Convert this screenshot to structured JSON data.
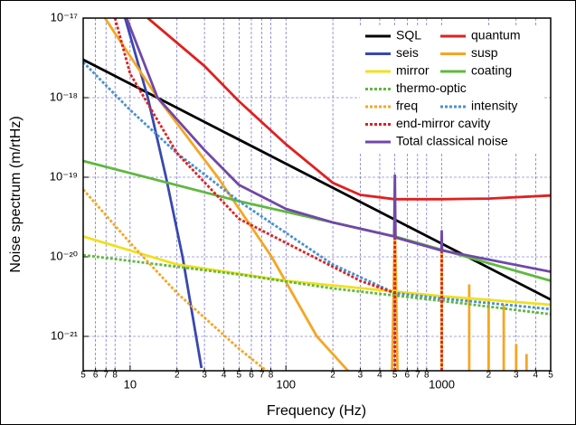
{
  "chart_data": {
    "type": "line",
    "x_label": "Frequency (Hz)",
    "y_label": "Noise spectrum (m/rtHz)",
    "xscale": "log",
    "yscale": "log",
    "grid": true,
    "legend": "upper right",
    "xlim": [
      5,
      5000
    ],
    "ylim": [
      3.7e-22,
      1e-17
    ],
    "xticks": [
      5,
      6,
      7,
      8,
      10,
      {
        "value": 20,
        "label": "2"
      },
      {
        "value": 30,
        "label": "3"
      },
      {
        "value": 40,
        "label": "4"
      },
      {
        "value": 50,
        "label": "5"
      },
      {
        "value": 60,
        "label": "6"
      },
      {
        "value": 70,
        "label": "7"
      },
      {
        "value": 80,
        "label": "8"
      },
      100,
      {
        "value": 200,
        "label": "2"
      },
      {
        "value": 300,
        "label": "3"
      },
      {
        "value": 400,
        "label": "4"
      },
      {
        "value": 500,
        "label": "5"
      },
      {
        "value": 600,
        "label": "6"
      },
      {
        "value": 700,
        "label": "7"
      },
      {
        "value": 800,
        "label": "8"
      },
      1000,
      {
        "value": 2000,
        "label": "2"
      },
      {
        "value": 3000,
        "label": "3"
      },
      {
        "value": 4000,
        "label": "4"
      },
      {
        "value": 5000,
        "label": "5"
      }
    ],
    "yticks": [
      {
        "value": 1e-21,
        "label": "10⁻²¹"
      },
      {
        "value": 1e-20,
        "label": "10⁻²⁰"
      },
      {
        "value": 1e-19,
        "label": "10⁻¹⁹"
      },
      {
        "value": 1e-18,
        "label": "10⁻¹⁸"
      },
      {
        "value": 1e-17,
        "label": "10⁻¹⁷"
      }
    ],
    "series": [
      {
        "name": "SQL",
        "color": "#000000",
        "style": "solid",
        "x": [
          5,
          5000
        ],
        "values": [
          3e-18,
          2.9e-21
        ]
      },
      {
        "name": "quantum",
        "color": "#e02020",
        "style": "solid",
        "x": [
          13,
          30,
          50,
          100,
          200,
          300,
          500,
          1000,
          2000,
          5000
        ],
        "values": [
          1e-17,
          2.5e-18,
          9e-19,
          2.6e-19,
          8.5e-20,
          6e-20,
          5.3e-20,
          5.3e-20,
          5.4e-20,
          5.9e-20
        ]
      },
      {
        "name": "seis",
        "color": "#3848b0",
        "style": "solid",
        "x": [
          9.3,
          13,
          17,
          21.7,
          28.7
        ],
        "values": [
          1e-17,
          1e-18,
          1e-19,
          1e-20,
          4e-22
        ]
      },
      {
        "name": "susp",
        "color": "#f5a623",
        "style": "solid",
        "x": [
          6.9,
          15,
          36.5,
          81,
          158,
          250,
          null,
          480,
          500,
          520,
          null,
          1000,
          1000,
          null,
          1500,
          1500,
          null,
          2000,
          2000,
          null,
          2500,
          2500,
          null,
          3000,
          3000,
          null,
          3500,
          3500
        ],
        "values": [
          1e-17,
          1e-18,
          1e-19,
          1e-20,
          1e-21,
          3.7e-22,
          null,
          3.7e-22,
          2.5e-20,
          3.7e-22,
          null,
          3.7e-22,
          1.6e-20,
          null,
          3.7e-22,
          4.5e-21,
          null,
          3.7e-22,
          3e-21,
          null,
          3.7e-22,
          2.5e-21,
          null,
          3.7e-22,
          8e-22,
          null,
          3.7e-22,
          6e-22
        ]
      },
      {
        "name": "mirror",
        "color": "#f0e020",
        "style": "solid",
        "x": [
          5,
          20,
          100,
          1000,
          5000
        ],
        "values": [
          1.8e-20,
          8e-21,
          5e-21,
          3.2e-21,
          2.5e-21
        ]
      },
      {
        "name": "coating",
        "color": "#60b840",
        "style": "solid",
        "x": [
          5,
          50,
          500,
          5000
        ],
        "values": [
          1.6e-19,
          5e-20,
          1.8e-20,
          5e-21
        ]
      },
      {
        "name": "thermo-optic",
        "color": "#60b840",
        "style": "dotted",
        "x": [
          5,
          50,
          200,
          1000,
          5000
        ],
        "values": [
          1.05e-20,
          6e-21,
          4e-21,
          2.8e-21,
          1.9e-21
        ]
      },
      {
        "name": "freq",
        "color": "#f5a623",
        "style": "dotted",
        "x": [
          5,
          10,
          20,
          50,
          75
        ],
        "values": [
          7e-20,
          1.5e-20,
          3.5e-21,
          7e-22,
          3.7e-22
        ]
      },
      {
        "name": "intensity",
        "color": "#4a90d0",
        "style": "dotted",
        "x": [
          5,
          10,
          20,
          50,
          100,
          200,
          500,
          1000,
          5000
        ],
        "values": [
          2.8e-18,
          7e-19,
          2e-19,
          5e-20,
          2e-20,
          8e-21,
          3.5e-21,
          3e-21,
          2.2e-21
        ]
      },
      {
        "name": "end-mirror cavity",
        "color": "#e02020",
        "style": "dotted",
        "x": [
          8,
          10,
          20,
          50,
          100,
          300,
          500,
          null,
          500,
          500,
          null,
          1000,
          1000
        ],
        "values": [
          1e-17,
          2e-18,
          2e-19,
          3e-20,
          1.5e-20,
          5e-21,
          3.5e-21,
          null,
          3.7e-22,
          1.8e-20,
          null,
          3.7e-22,
          1.2e-20
        ]
      },
      {
        "name": "Total classical noise",
        "color": "#7048a8",
        "style": "solid",
        "x": [
          9.5,
          15,
          30,
          50,
          100,
          200,
          495,
          500,
          505,
          995,
          1000,
          1005,
          5000
        ],
        "values": [
          1e-17,
          1e-18,
          2.2e-19,
          8e-20,
          4e-20,
          2.7e-20,
          1.8e-20,
          1.05e-19,
          1.75e-20,
          1.2e-20,
          2.1e-20,
          1.2e-20,
          6.5e-21
        ]
      }
    ]
  }
}
